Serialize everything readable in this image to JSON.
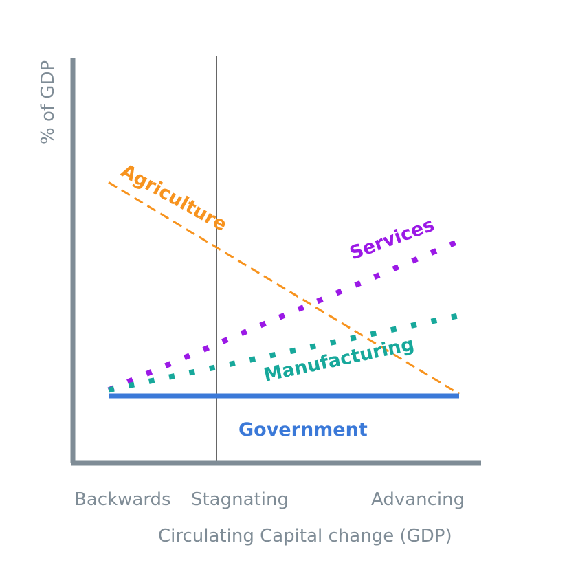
{
  "chart_data": {
    "type": "line",
    "xlabel": "Circulating Capital change (GDP)",
    "ylabel": "% of GDP",
    "categories": [
      "Backwards",
      "Stagnating",
      "Advancing"
    ],
    "xlim": [
      0,
      1
    ],
    "ylim": [
      0,
      1
    ],
    "divider_x": 0.3,
    "colors": {
      "axis": "#7f8c96",
      "divider": "#333333"
    },
    "series": [
      {
        "name": "Agriculture",
        "style": "dashed",
        "color": "#f7931e",
        "x": [
          0,
          1
        ],
        "y": [
          0.71,
          0.17
        ]
      },
      {
        "name": "Services",
        "style": "dotted",
        "color": "#9b19e6",
        "x": [
          0,
          1
        ],
        "y": [
          0.18,
          0.56
        ]
      },
      {
        "name": "Manufacturing",
        "style": "dotted",
        "color": "#17a89b",
        "x": [
          0,
          1
        ],
        "y": [
          0.18,
          0.37
        ]
      },
      {
        "name": "Government",
        "style": "solid",
        "color": "#3b79d8",
        "x": [
          0,
          1
        ],
        "y": [
          0.165,
          0.165
        ]
      }
    ]
  }
}
